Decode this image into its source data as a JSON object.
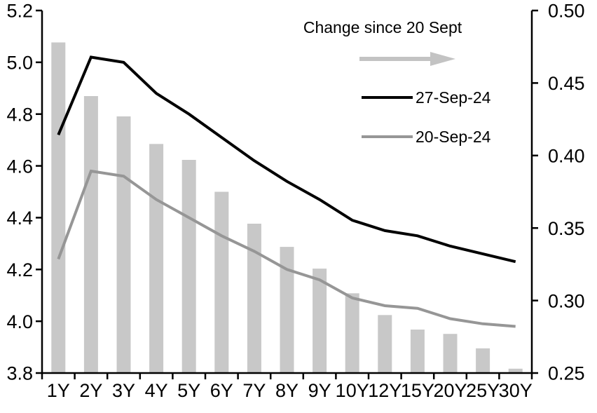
{
  "chart_data": {
    "type": "combo_bar_line",
    "title": "",
    "categories": [
      "1Y",
      "2Y",
      "3Y",
      "4Y",
      "5Y",
      "6Y",
      "7Y",
      "8Y",
      "9Y",
      "10Y",
      "12Y",
      "15Y",
      "20Y",
      "25Y",
      "30Y"
    ],
    "series": [
      {
        "name": "Change since 20 Sept",
        "type": "bar",
        "axis": "right",
        "color": "#c8c8c8",
        "values": [
          0.478,
          0.441,
          0.427,
          0.408,
          0.397,
          0.375,
          0.353,
          0.337,
          0.322,
          0.305,
          0.29,
          0.28,
          0.277,
          0.267,
          0.253
        ]
      },
      {
        "name": "27-Sep-24",
        "type": "line",
        "axis": "left",
        "color": "#000000",
        "values": [
          4.72,
          5.02,
          5.0,
          4.88,
          4.8,
          4.71,
          4.62,
          4.54,
          4.47,
          4.39,
          4.35,
          4.33,
          4.29,
          4.26,
          4.23
        ]
      },
      {
        "name": "20-Sep-24",
        "type": "line",
        "axis": "left",
        "color": "#969696",
        "values": [
          4.24,
          4.58,
          4.56,
          4.47,
          4.4,
          4.33,
          4.27,
          4.2,
          4.16,
          4.09,
          4.06,
          4.05,
          4.01,
          3.99,
          3.98
        ]
      }
    ],
    "axes": {
      "left": {
        "min": 3.8,
        "max": 5.2,
        "tick_labels": [
          "5.2",
          "5.0",
          "4.8",
          "4.6",
          "4.4",
          "4.2",
          "4.0",
          "3.8"
        ],
        "tick_values": [
          5.2,
          5.0,
          4.8,
          4.6,
          4.4,
          4.2,
          4.0,
          3.8
        ]
      },
      "right": {
        "min": 0.25,
        "max": 0.5,
        "tick_labels": [
          "0.50",
          "0.45",
          "0.40",
          "0.35",
          "0.30",
          "0.25"
        ],
        "tick_values": [
          0.5,
          0.45,
          0.4,
          0.35,
          0.3,
          0.25
        ]
      }
    },
    "grid": "off",
    "legend_position": "top-center-inside"
  },
  "legend": {
    "title": "Change since 20 Sept",
    "arrow_icon": "right-arrow",
    "arrow_color": "#c3c3c3",
    "item1": "27-Sep-24",
    "item2": "20-Sep-24"
  },
  "colors": {
    "axis": "#000000",
    "background": "#ffffff",
    "bar": "#c8c8c8",
    "line_27_sep": "#000000",
    "line_20_sep": "#969696"
  }
}
